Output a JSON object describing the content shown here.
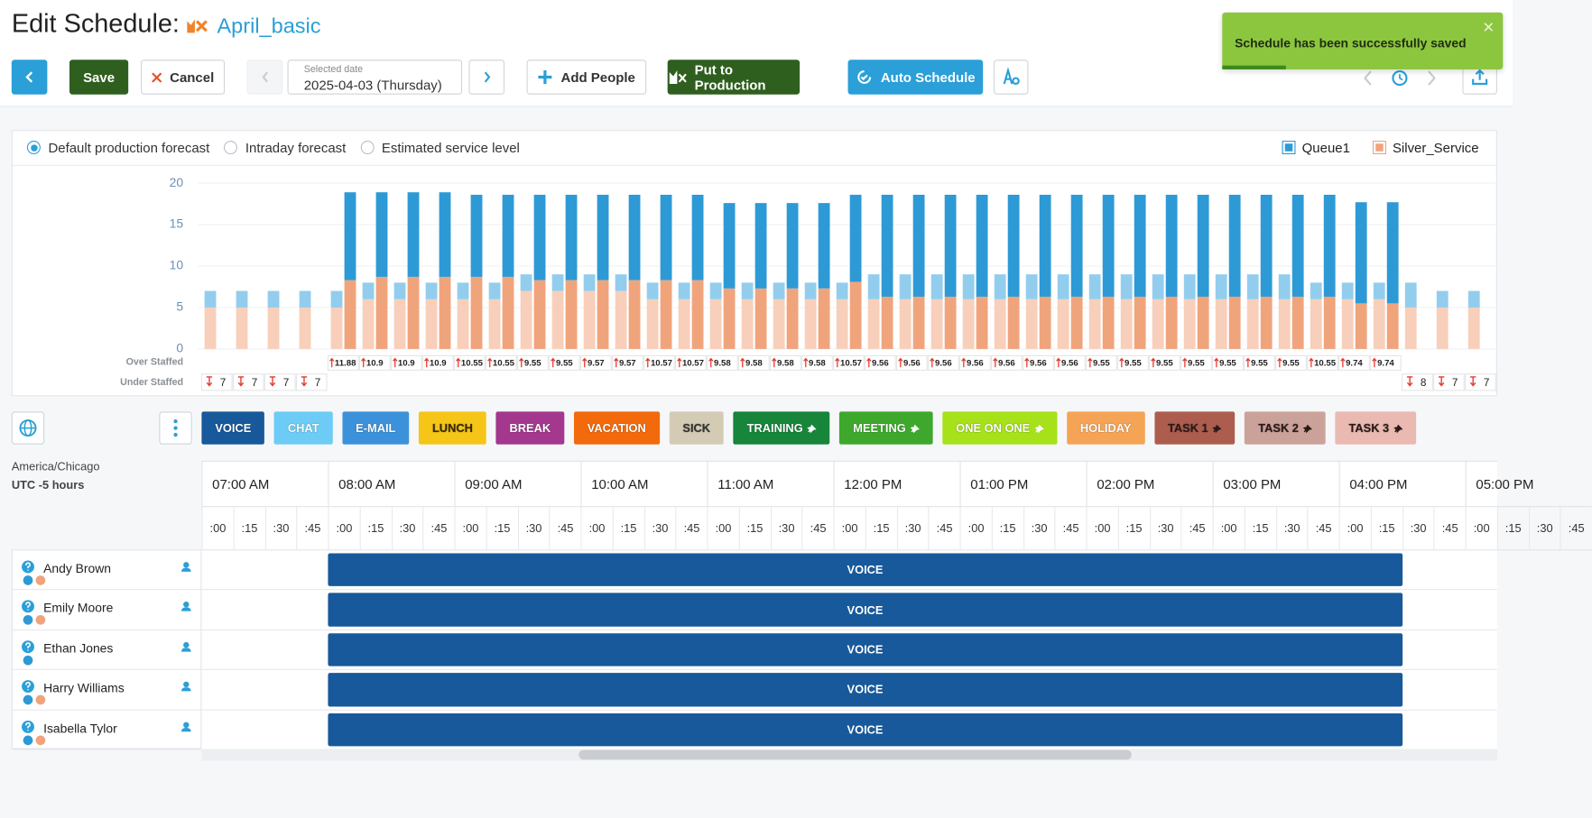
{
  "header": {
    "title": "Edit Schedule:",
    "schedule_name": "April_basic"
  },
  "toolbar": {
    "save": "Save",
    "cancel": "Cancel",
    "date_label": "Selected date",
    "date": "2025-04-03 (Thursday)",
    "add_people": "Add People",
    "put_to_production": "Put to Production",
    "auto_schedule": "Auto Schedule"
  },
  "toast": {
    "message": "Schedule has been successfully saved"
  },
  "forecast_options": {
    "items": [
      "Default production forecast",
      "Intraday forecast",
      "Estimated service level"
    ],
    "selected": 0
  },
  "chart_data": {
    "type": "bar",
    "stacked": true,
    "series": [
      {
        "name": "Queue1",
        "color": "#2d9ad6",
        "forecast_color": "#93cdee",
        "values": [
          0,
          0,
          0,
          0,
          10.6,
          10.2,
          10.2,
          10.2,
          9.9,
          9.9,
          10.3,
          10.3,
          10.3,
          10.3,
          10.3,
          10.3,
          10.3,
          10.3,
          10.3,
          10.3,
          10.5,
          12.3,
          12.3,
          12.3,
          12.3,
          12.3,
          12.3,
          12.3,
          12.3,
          12.3,
          12.3,
          12.3,
          12.3,
          12.3,
          12.3,
          12.3,
          12.2,
          12.2,
          0,
          0,
          0
        ],
        "forecast": [
          2,
          2,
          2,
          2,
          2,
          2,
          2,
          2,
          2,
          2,
          2,
          2,
          2,
          2,
          2,
          2,
          2,
          2,
          2,
          2,
          2,
          3,
          3,
          3,
          3,
          3,
          3,
          3,
          3,
          3,
          3,
          3,
          3,
          3,
          3,
          2,
          2,
          2,
          3,
          2,
          2
        ]
      },
      {
        "name": "Silver_Service",
        "color": "#f0a47c",
        "forecast_color": "#f8cfba",
        "values": [
          0,
          0,
          0,
          0,
          8.3,
          8.7,
          8.7,
          8.7,
          8.7,
          8.7,
          8.3,
          8.3,
          8.3,
          8.3,
          8.3,
          8.3,
          7.3,
          7.3,
          7.3,
          7.3,
          8.1,
          6.3,
          6.3,
          6.3,
          6.3,
          6.3,
          6.3,
          6.3,
          6.3,
          6.3,
          6.3,
          6.3,
          6.3,
          6.3,
          6.3,
          6.3,
          5.5,
          5.5,
          0,
          0,
          0
        ],
        "forecast": [
          5,
          5,
          5,
          5,
          5,
          6,
          6,
          6,
          6,
          6,
          7,
          7,
          7,
          7,
          6,
          6,
          6,
          6,
          6,
          6,
          6,
          6,
          6,
          6,
          6,
          6,
          6,
          6,
          6,
          6,
          6,
          6,
          6,
          6,
          6,
          6,
          6,
          6,
          5,
          5,
          5
        ]
      }
    ],
    "ylim": [
      0,
      20
    ],
    "yticks": [
      0,
      5,
      10,
      15,
      20
    ],
    "grid": true,
    "legend": "top-right",
    "over_staffed_label": "Over Staffed",
    "under_staffed_label": "Under Staffed",
    "over_staffed": [
      null,
      null,
      null,
      null,
      11.88,
      10.9,
      10.9,
      10.9,
      10.55,
      10.55,
      9.55,
      9.55,
      9.57,
      9.57,
      10.57,
      10.57,
      9.58,
      9.58,
      9.58,
      9.58,
      10.57,
      9.56,
      9.56,
      9.56,
      9.56,
      9.56,
      9.56,
      9.56,
      9.55,
      9.55,
      9.55,
      9.55,
      9.55,
      9.55,
      9.55,
      10.55,
      9.74,
      9.74,
      null,
      null,
      null
    ],
    "under_staffed": [
      7,
      7,
      7,
      7,
      null,
      null,
      null,
      null,
      null,
      null,
      null,
      null,
      null,
      null,
      null,
      null,
      null,
      null,
      null,
      null,
      null,
      null,
      null,
      null,
      null,
      null,
      null,
      null,
      null,
      null,
      null,
      null,
      null,
      null,
      null,
      null,
      null,
      null,
      8,
      7,
      7
    ]
  },
  "activities": [
    {
      "label": "VOICE",
      "color": "#17599a",
      "text_color": "#ffffff",
      "pinned": false
    },
    {
      "label": "CHAT",
      "color": "#6cccf5",
      "text_color": "#ffffff",
      "pinned": false
    },
    {
      "label": "E-MAIL",
      "color": "#3c92da",
      "text_color": "#ffffff",
      "pinned": false
    },
    {
      "label": "LUNCH",
      "color": "#f5c518",
      "text_color": "#3a2a00",
      "pinned": false
    },
    {
      "label": "BREAK",
      "color": "#a3388e",
      "text_color": "#ffffff",
      "pinned": false
    },
    {
      "label": "VACATION",
      "color": "#f26a0c",
      "text_color": "#ffffff",
      "pinned": false
    },
    {
      "label": "SICK",
      "color": "#d3cbb4",
      "text_color": "#333333",
      "pinned": false
    },
    {
      "label": "TRAINING",
      "color": "#17853a",
      "text_color": "#ffffff",
      "pinned": true
    },
    {
      "label": "MEETING",
      "color": "#3ea82c",
      "text_color": "#ffffff",
      "pinned": true
    },
    {
      "label": "ONE ON ONE",
      "color": "#a6e11a",
      "text_color": "#ffffff",
      "pinned": true
    },
    {
      "label": "HOLIDAY",
      "color": "#f5a455",
      "text_color": "#ffffff",
      "pinned": false
    },
    {
      "label": "TASK 1",
      "color": "#ad5d4e",
      "text_color": "#2a1a1a",
      "pinned": true
    },
    {
      "label": "TASK 2",
      "color": "#cba29a",
      "text_color": "#2a1a1a",
      "pinned": true
    },
    {
      "label": "TASK 3",
      "color": "#eab9b1",
      "text_color": "#2a1a1a",
      "pinned": true
    }
  ],
  "timeline": {
    "timezone": "America/Chicago",
    "utc_offset": "UTC -5 hours",
    "hours": [
      "07:00 AM",
      "08:00 AM",
      "09:00 AM",
      "10:00 AM",
      "11:00 AM",
      "12:00 PM",
      "01:00 PM",
      "02:00 PM",
      "03:00 PM",
      "04:00 PM",
      "05:00 PM"
    ],
    "quarters": [
      ":00",
      ":15",
      ":30",
      ":45"
    ]
  },
  "people": [
    {
      "name": "Andy Brown",
      "skills": [
        "#2d9ad6",
        "#f0a47c"
      ],
      "shift": {
        "label": "VOICE",
        "start": 8,
        "end": 16.5
      }
    },
    {
      "name": "Emily Moore",
      "skills": [
        "#2d9ad6",
        "#f0a47c"
      ],
      "shift": {
        "label": "VOICE",
        "start": 8,
        "end": 16.5
      }
    },
    {
      "name": "Ethan Jones",
      "skills": [
        "#2d9ad6"
      ],
      "shift": {
        "label": "VOICE",
        "start": 8,
        "end": 16.5
      }
    },
    {
      "name": "Harry Williams",
      "skills": [
        "#2d9ad6",
        "#f0a47c"
      ],
      "shift": {
        "label": "VOICE",
        "start": 8,
        "end": 16.5
      }
    },
    {
      "name": "Isabella Tylor",
      "skills": [
        "#2d9ad6",
        "#f0a47c"
      ],
      "shift": {
        "label": "VOICE",
        "start": 8,
        "end": 16.5
      }
    }
  ]
}
